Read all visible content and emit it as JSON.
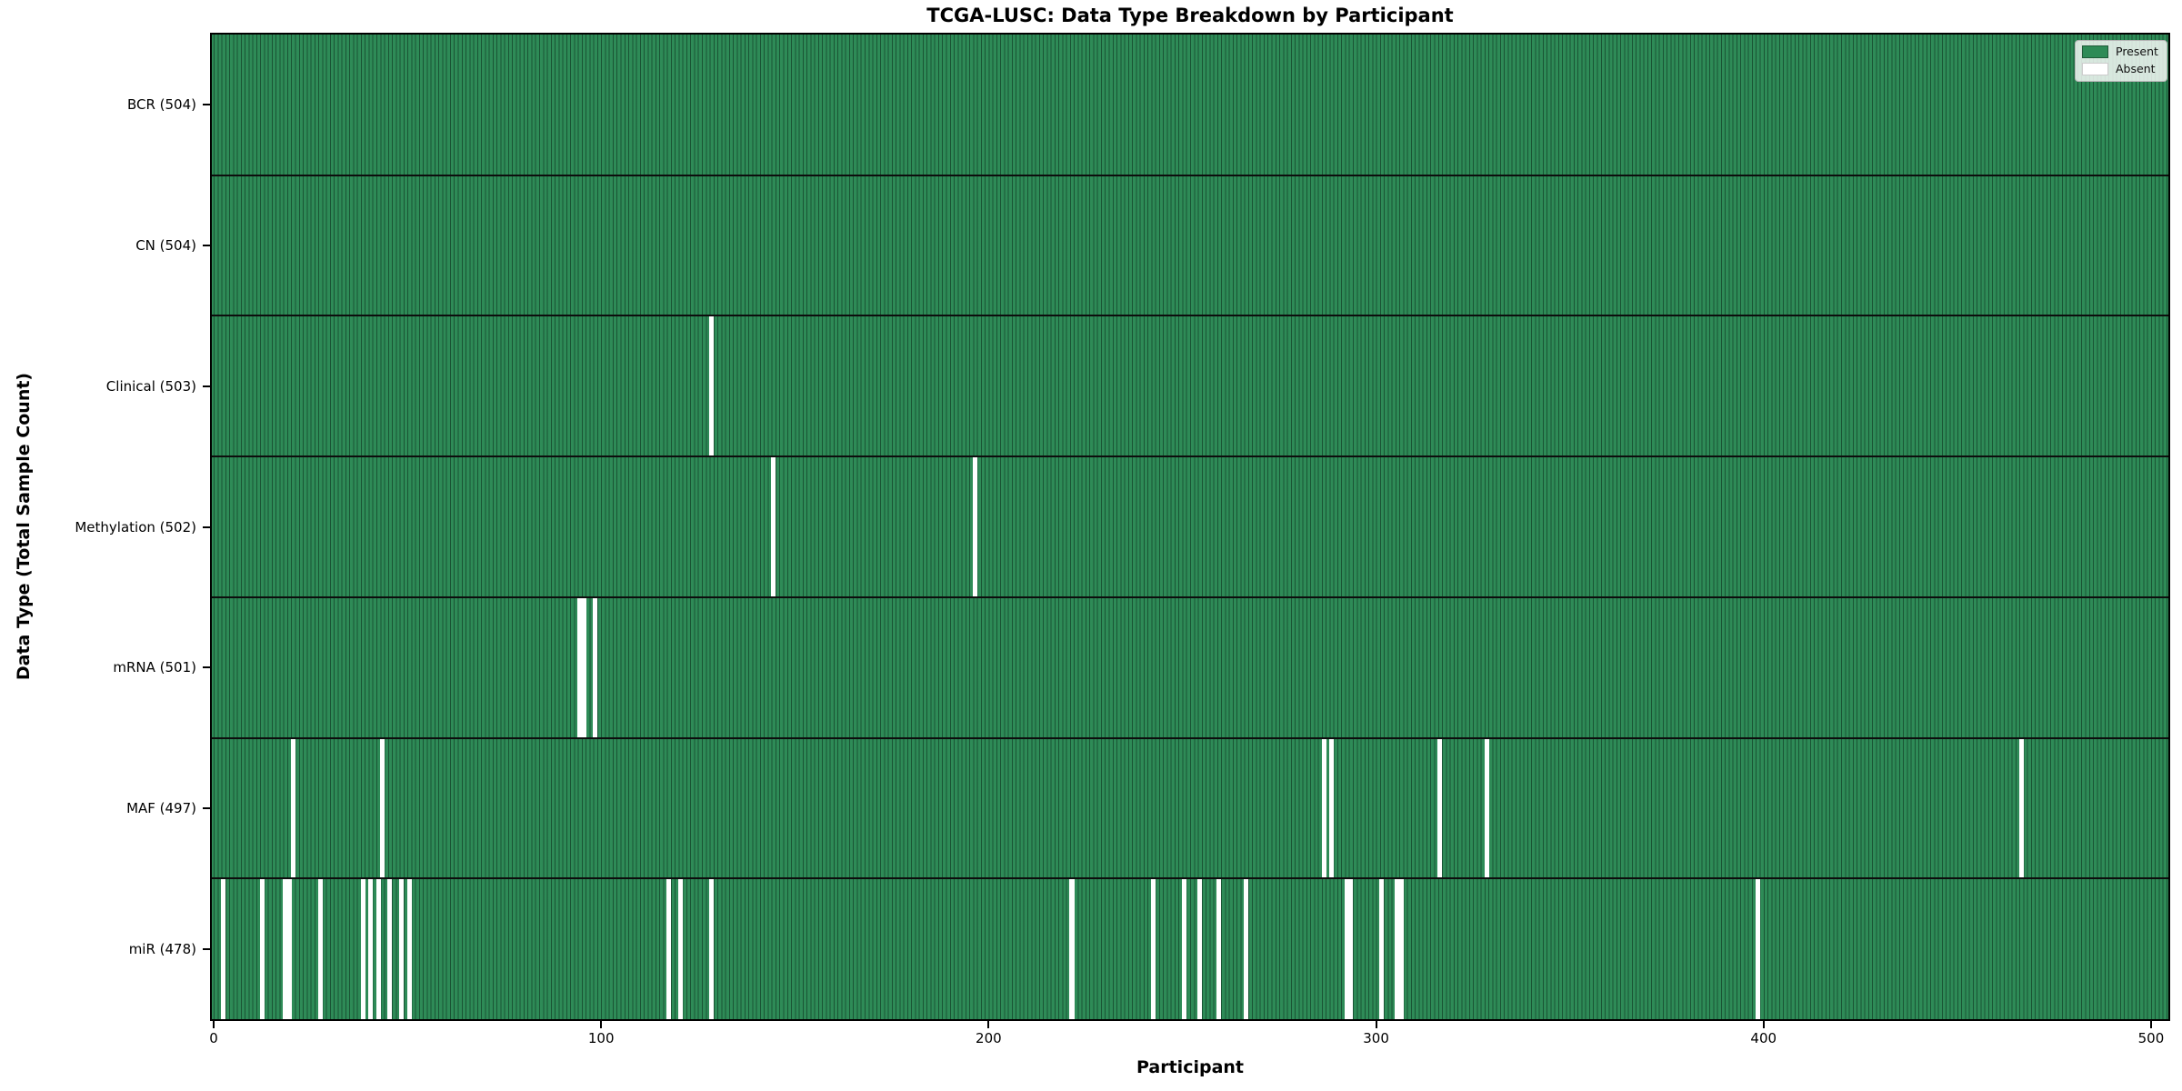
{
  "figure": {
    "title": "TCGA-LUSC: Data Type Breakdown by Participant",
    "xlabel": "Participant",
    "ylabel": "Data Type (Total Sample Count)"
  },
  "chart_data": {
    "type": "heatmap",
    "title": "TCGA-LUSC: Data Type Breakdown by Participant",
    "xlabel": "Participant",
    "ylabel": "Data Type (Total Sample Count)",
    "x_ticks": [
      0,
      100,
      200,
      300,
      400,
      500
    ],
    "n_participants": 504,
    "present_color": "#2e8b57",
    "absent_color": "#ffffff",
    "bar_edge_color": "#1b4d33",
    "grid": false,
    "legend_position": "upper right",
    "legend": [
      {
        "label": "Present",
        "color": "#2e8b57"
      },
      {
        "label": "Absent",
        "color": "#ffffff"
      }
    ],
    "rows": [
      {
        "name": "BCR",
        "label": "BCR (504)",
        "total_samples": 504,
        "absent_participants": []
      },
      {
        "name": "CN",
        "label": "CN (504)",
        "total_samples": 504,
        "absent_participants": []
      },
      {
        "name": "Clinical",
        "label": "Clinical (503)",
        "total_samples": 503,
        "absent_participants": [
          128
        ]
      },
      {
        "name": "Methylation",
        "label": "Methylation (502)",
        "total_samples": 502,
        "absent_participants": [
          144,
          196
        ]
      },
      {
        "name": "mRNA",
        "label": "mRNA (501)",
        "total_samples": 501,
        "absent_participants": [
          94,
          95,
          98
        ]
      },
      {
        "name": "MAF",
        "label": "MAF (497)",
        "total_samples": 497,
        "absent_participants": [
          20,
          43,
          286,
          288,
          316,
          328,
          466
        ]
      },
      {
        "name": "miR",
        "label": "miR (478)",
        "total_samples": 478,
        "absent_participants": [
          2,
          12,
          18,
          19,
          27,
          38,
          40,
          42,
          45,
          48,
          50,
          117,
          120,
          128,
          221,
          242,
          250,
          254,
          259,
          266,
          292,
          293,
          301,
          305,
          306,
          398
        ]
      }
    ]
  }
}
